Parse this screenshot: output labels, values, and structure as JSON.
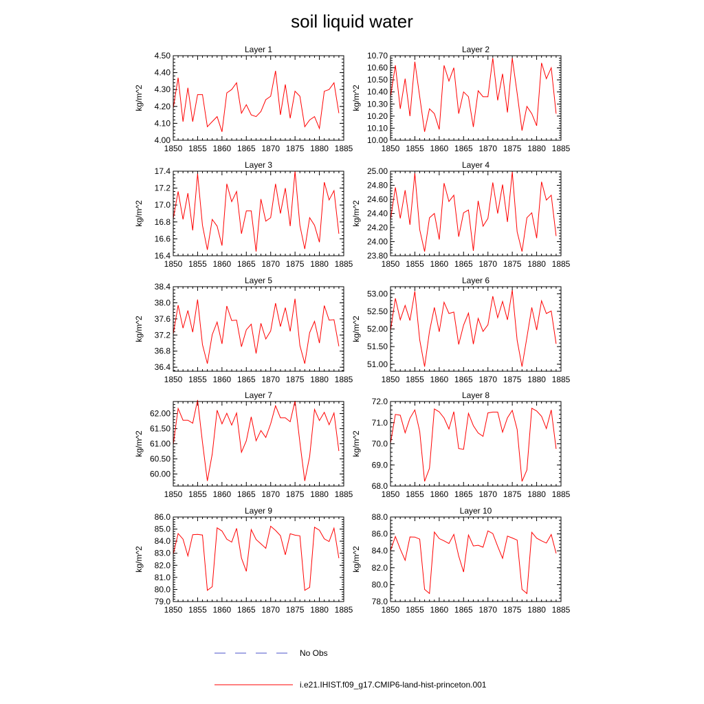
{
  "figure": {
    "title": "soil liquid water"
  },
  "legend": [
    {
      "label": "No Obs",
      "color": "#4a52c8",
      "dash": true
    },
    {
      "label": "i.e21.IHIST.f09_g17.CMIP6-land-hist-princeton.001",
      "color": "#ff0000",
      "dash": false
    }
  ],
  "chart_data": [
    {
      "type": "line",
      "title": "Layer 1",
      "ylabel": "kg/m^2",
      "xlim": [
        1850,
        1885
      ],
      "ylim": [
        4.0,
        4.5
      ],
      "xticks": [
        1850,
        1855,
        1860,
        1865,
        1870,
        1875,
        1880,
        1885
      ],
      "yticks": [
        "4.00",
        "4.10",
        "4.20",
        "4.30",
        "4.40",
        "4.50"
      ],
      "ytick_values": [
        4.0,
        4.1,
        4.2,
        4.3,
        4.4,
        4.5
      ],
      "x": [
        1850,
        1851,
        1852,
        1853,
        1854,
        1855,
        1856,
        1857,
        1858,
        1859,
        1860,
        1861,
        1862,
        1863,
        1864,
        1865,
        1866,
        1867,
        1868,
        1869,
        1870,
        1871,
        1872,
        1873,
        1874,
        1875,
        1876,
        1877,
        1878,
        1879,
        1880,
        1881,
        1882,
        1883,
        1884
      ],
      "series": [
        {
          "name": "i.e21.IHIST.f09_g17.CMIP6-land-hist-princeton.001",
          "color": "#ff0000",
          "values": [
            4.19,
            4.37,
            4.11,
            4.31,
            4.11,
            4.27,
            4.27,
            4.08,
            4.11,
            4.14,
            4.05,
            4.28,
            4.3,
            4.34,
            4.16,
            4.21,
            4.15,
            4.14,
            4.17,
            4.24,
            4.26,
            4.41,
            4.15,
            4.33,
            4.13,
            4.29,
            4.26,
            4.08,
            4.12,
            4.14,
            4.07,
            4.29,
            4.3,
            4.34,
            4.16
          ]
        }
      ]
    },
    {
      "type": "line",
      "title": "Layer 2",
      "ylabel": "kg/m^2",
      "xlim": [
        1850,
        1885
      ],
      "ylim": [
        10.0,
        10.7
      ],
      "xticks": [
        1850,
        1855,
        1860,
        1865,
        1870,
        1875,
        1880,
        1885
      ],
      "yticks": [
        "10.00",
        "10.10",
        "10.20",
        "10.30",
        "10.40",
        "10.50",
        "10.60",
        "10.70"
      ],
      "ytick_values": [
        10.0,
        10.1,
        10.2,
        10.3,
        10.4,
        10.5,
        10.6,
        10.7
      ],
      "x": [
        1850,
        1851,
        1852,
        1853,
        1854,
        1855,
        1856,
        1857,
        1858,
        1859,
        1860,
        1861,
        1862,
        1863,
        1864,
        1865,
        1866,
        1867,
        1868,
        1869,
        1870,
        1871,
        1872,
        1873,
        1874,
        1875,
        1876,
        1877,
        1878,
        1879,
        1880,
        1881,
        1882,
        1883,
        1884
      ],
      "series": [
        {
          "name": "i.e21.IHIST.f09_g17.CMIP6-land-hist-princeton.001",
          "color": "#ff0000",
          "values": [
            10.36,
            10.62,
            10.26,
            10.51,
            10.2,
            10.65,
            10.36,
            10.07,
            10.26,
            10.22,
            10.09,
            10.62,
            10.49,
            10.6,
            10.22,
            10.4,
            10.36,
            10.11,
            10.41,
            10.36,
            10.36,
            10.68,
            10.33,
            10.55,
            10.23,
            10.68,
            10.39,
            10.08,
            10.28,
            10.22,
            10.12,
            10.64,
            10.51,
            10.6,
            10.22
          ]
        }
      ]
    },
    {
      "type": "line",
      "title": "Layer 3",
      "ylabel": "kg/m^2",
      "xlim": [
        1850,
        1885
      ],
      "ylim": [
        16.4,
        17.4
      ],
      "xticks": [
        1850,
        1855,
        1860,
        1865,
        1870,
        1875,
        1880,
        1885
      ],
      "yticks": [
        "16.4",
        "16.6",
        "16.8",
        "17.0",
        "17.2",
        "17.4"
      ],
      "ytick_values": [
        16.4,
        16.6,
        16.8,
        17.0,
        17.2,
        17.4
      ],
      "x": [
        1850,
        1851,
        1852,
        1853,
        1854,
        1855,
        1856,
        1857,
        1858,
        1859,
        1860,
        1861,
        1862,
        1863,
        1864,
        1865,
        1866,
        1867,
        1868,
        1869,
        1870,
        1871,
        1872,
        1873,
        1874,
        1875,
        1876,
        1877,
        1878,
        1879,
        1880,
        1881,
        1882,
        1883,
        1884
      ],
      "series": [
        {
          "name": "i.e21.IHIST.f09_g17.CMIP6-land-hist-princeton.001",
          "color": "#ff0000",
          "values": [
            16.84,
            17.16,
            16.83,
            17.14,
            16.7,
            17.37,
            16.76,
            16.47,
            16.83,
            16.75,
            16.52,
            17.25,
            17.04,
            17.16,
            16.66,
            16.93,
            16.93,
            16.45,
            17.07,
            16.81,
            16.85,
            17.25,
            16.9,
            17.2,
            16.75,
            17.4,
            16.76,
            16.48,
            16.85,
            16.76,
            16.56,
            17.27,
            17.06,
            17.17,
            16.66
          ]
        }
      ]
    },
    {
      "type": "line",
      "title": "Layer 4",
      "ylabel": "kg/m^2",
      "xlim": [
        1850,
        1885
      ],
      "ylim": [
        23.8,
        25.0
      ],
      "xticks": [
        1850,
        1855,
        1860,
        1865,
        1870,
        1875,
        1880,
        1885
      ],
      "yticks": [
        "23.80",
        "24.00",
        "24.20",
        "24.40",
        "24.60",
        "24.80",
        "25.00"
      ],
      "ytick_values": [
        23.8,
        24.0,
        24.2,
        24.4,
        24.6,
        24.8,
        25.0
      ],
      "x": [
        1850,
        1851,
        1852,
        1853,
        1854,
        1855,
        1856,
        1857,
        1858,
        1859,
        1860,
        1861,
        1862,
        1863,
        1864,
        1865,
        1866,
        1867,
        1868,
        1869,
        1870,
        1871,
        1872,
        1873,
        1874,
        1875,
        1876,
        1877,
        1878,
        1879,
        1880,
        1881,
        1882,
        1883,
        1884
      ],
      "series": [
        {
          "name": "i.e21.IHIST.f09_g17.CMIP6-land-hist-princeton.001",
          "color": "#ff0000",
          "values": [
            24.31,
            24.77,
            24.33,
            24.73,
            24.24,
            24.97,
            24.17,
            23.86,
            24.34,
            24.4,
            24.03,
            24.83,
            24.57,
            24.66,
            24.07,
            24.41,
            24.45,
            23.87,
            24.58,
            24.22,
            24.33,
            24.84,
            24.4,
            24.81,
            24.28,
            24.99,
            24.14,
            23.86,
            24.34,
            24.41,
            24.05,
            24.85,
            24.59,
            24.66,
            24.08
          ]
        }
      ]
    },
    {
      "type": "line",
      "title": "Layer 5",
      "ylabel": "kg/m^2",
      "xlim": [
        1850,
        1885
      ],
      "ylim": [
        36.3,
        38.4
      ],
      "xticks": [
        1850,
        1855,
        1860,
        1865,
        1870,
        1875,
        1880,
        1885
      ],
      "yticks": [
        "36.4",
        "36.8",
        "37.2",
        "37.6",
        "38.0",
        "38.4"
      ],
      "ytick_values": [
        36.4,
        36.8,
        37.2,
        37.6,
        38.0,
        38.4
      ],
      "x": [
        1850,
        1851,
        1852,
        1853,
        1854,
        1855,
        1856,
        1857,
        1858,
        1859,
        1860,
        1861,
        1862,
        1863,
        1864,
        1865,
        1866,
        1867,
        1868,
        1869,
        1870,
        1871,
        1872,
        1873,
        1874,
        1875,
        1876,
        1877,
        1878,
        1879,
        1880,
        1881,
        1882,
        1883,
        1884
      ],
      "series": [
        {
          "name": "i.e21.IHIST.f09_g17.CMIP6-land-hist-princeton.001",
          "color": "#ff0000",
          "values": [
            37.22,
            37.94,
            37.37,
            37.81,
            37.27,
            38.08,
            36.96,
            36.49,
            37.21,
            37.52,
            36.98,
            37.92,
            37.56,
            37.57,
            36.91,
            37.33,
            37.47,
            36.74,
            37.49,
            37.1,
            37.3,
            37.99,
            37.41,
            37.88,
            37.29,
            38.1,
            36.94,
            36.49,
            37.26,
            37.54,
            37.0,
            37.93,
            37.57,
            37.58,
            36.92
          ]
        }
      ]
    },
    {
      "type": "line",
      "title": "Layer 6",
      "ylabel": "kg/m^2",
      "xlim": [
        1850,
        1885
      ],
      "ylim": [
        50.8,
        53.2
      ],
      "xticks": [
        1850,
        1855,
        1860,
        1865,
        1870,
        1875,
        1880,
        1885
      ],
      "yticks": [
        "51.00",
        "51.50",
        "52.00",
        "52.50",
        "53.00"
      ],
      "ytick_values": [
        51.0,
        51.5,
        52.0,
        52.5,
        53.0
      ],
      "x": [
        1850,
        1851,
        1852,
        1853,
        1854,
        1855,
        1856,
        1857,
        1858,
        1859,
        1860,
        1861,
        1862,
        1863,
        1864,
        1865,
        1866,
        1867,
        1868,
        1869,
        1870,
        1871,
        1872,
        1873,
        1874,
        1875,
        1876,
        1877,
        1878,
        1879,
        1880,
        1881,
        1882,
        1883,
        1884
      ],
      "series": [
        {
          "name": "i.e21.IHIST.f09_g17.CMIP6-land-hist-princeton.001",
          "color": "#ff0000",
          "values": [
            51.95,
            52.87,
            52.26,
            52.67,
            52.24,
            53.07,
            51.69,
            50.93,
            51.93,
            52.61,
            51.92,
            52.76,
            52.44,
            52.48,
            51.56,
            52.11,
            52.45,
            51.57,
            52.3,
            51.93,
            52.12,
            52.93,
            52.32,
            52.78,
            52.26,
            53.1,
            51.68,
            50.93,
            51.76,
            52.61,
            51.97,
            52.8,
            52.44,
            52.51,
            51.58
          ]
        }
      ]
    },
    {
      "type": "line",
      "title": "Layer 7",
      "ylabel": "kg/m^2",
      "xlim": [
        1850,
        1885
      ],
      "ylim": [
        59.6,
        62.4
      ],
      "xticks": [
        1850,
        1855,
        1860,
        1865,
        1870,
        1875,
        1880,
        1885
      ],
      "yticks": [
        "60.00",
        "60.50",
        "61.00",
        "61.50",
        "62.00"
      ],
      "ytick_values": [
        60.0,
        60.5,
        61.0,
        61.5,
        62.0
      ],
      "x": [
        1850,
        1851,
        1852,
        1853,
        1854,
        1855,
        1856,
        1857,
        1858,
        1859,
        1860,
        1861,
        1862,
        1863,
        1864,
        1865,
        1866,
        1867,
        1868,
        1869,
        1870,
        1871,
        1872,
        1873,
        1874,
        1875,
        1876,
        1877,
        1878,
        1879,
        1880,
        1881,
        1882,
        1883,
        1884
      ],
      "series": [
        {
          "name": "i.e21.IHIST.f09_g17.CMIP6-land-hist-princeton.001",
          "color": "#ff0000",
          "values": [
            60.97,
            62.17,
            61.78,
            61.78,
            61.68,
            62.45,
            61.05,
            59.77,
            60.66,
            62.11,
            61.66,
            62.01,
            61.62,
            62.02,
            60.72,
            61.1,
            61.89,
            61.1,
            61.44,
            61.21,
            61.66,
            62.26,
            61.86,
            61.86,
            61.73,
            62.42,
            61.05,
            59.77,
            60.58,
            62.14,
            61.77,
            62.04,
            61.63,
            62.02,
            60.76
          ]
        }
      ]
    },
    {
      "type": "line",
      "title": "Layer 8",
      "ylabel": "kg/m^2",
      "xlim": [
        1850,
        1885
      ],
      "ylim": [
        68.0,
        72.0
      ],
      "xticks": [
        1850,
        1855,
        1860,
        1865,
        1870,
        1875,
        1880,
        1885
      ],
      "yticks": [
        "68.0",
        "69.0",
        "70.0",
        "71.0",
        "72.0"
      ],
      "ytick_values": [
        68.0,
        69.0,
        70.0,
        71.0,
        72.0
      ],
      "x": [
        1850,
        1851,
        1852,
        1853,
        1854,
        1855,
        1856,
        1857,
        1858,
        1859,
        1860,
        1861,
        1862,
        1863,
        1864,
        1865,
        1866,
        1867,
        1868,
        1869,
        1870,
        1871,
        1872,
        1873,
        1874,
        1875,
        1876,
        1877,
        1878,
        1879,
        1880,
        1881,
        1882,
        1883,
        1884
      ],
      "series": [
        {
          "name": "i.e21.IHIST.f09_g17.CMIP6-land-hist-princeton.001",
          "color": "#ff0000",
          "values": [
            70.02,
            71.39,
            71.35,
            70.52,
            71.21,
            71.6,
            70.59,
            68.22,
            68.84,
            71.65,
            71.51,
            71.22,
            70.7,
            71.52,
            69.77,
            69.74,
            71.44,
            70.86,
            70.51,
            70.35,
            71.46,
            71.5,
            71.5,
            70.55,
            71.23,
            71.58,
            70.68,
            68.22,
            68.76,
            71.68,
            71.55,
            71.3,
            70.72,
            71.6,
            69.76
          ]
        }
      ]
    },
    {
      "type": "line",
      "title": "Layer 9",
      "ylabel": "kg/m^2",
      "xlim": [
        1850,
        1885
      ],
      "ylim": [
        79.0,
        86.0
      ],
      "xticks": [
        1850,
        1855,
        1860,
        1865,
        1870,
        1875,
        1880,
        1885
      ],
      "yticks": [
        "79.0",
        "80.0",
        "81.0",
        "82.0",
        "83.0",
        "84.0",
        "85.0",
        "86.0"
      ],
      "ytick_values": [
        79.0,
        80.0,
        81.0,
        82.0,
        83.0,
        84.0,
        85.0,
        86.0
      ],
      "x": [
        1850,
        1851,
        1852,
        1853,
        1854,
        1855,
        1856,
        1857,
        1858,
        1859,
        1860,
        1861,
        1862,
        1863,
        1864,
        1865,
        1866,
        1867,
        1868,
        1869,
        1870,
        1871,
        1872,
        1873,
        1874,
        1875,
        1876,
        1877,
        1878,
        1879,
        1880,
        1881,
        1882,
        1883,
        1884
      ],
      "series": [
        {
          "name": "i.e21.IHIST.f09_g17.CMIP6-land-hist-princeton.001",
          "color": "#ff0000",
          "values": [
            82.92,
            84.63,
            84.17,
            82.78,
            84.54,
            84.56,
            84.51,
            79.93,
            80.23,
            85.1,
            84.84,
            84.16,
            83.92,
            85.06,
            82.6,
            81.5,
            84.96,
            84.14,
            83.78,
            83.41,
            85.24,
            84.89,
            84.46,
            82.87,
            84.61,
            84.5,
            84.44,
            79.93,
            80.18,
            85.15,
            84.91,
            84.19,
            83.97,
            85.08,
            82.59
          ]
        }
      ]
    },
    {
      "type": "line",
      "title": "Layer 10",
      "ylabel": "kg/m^2",
      "xlim": [
        1850,
        1885
      ],
      "ylim": [
        78.0,
        88.0
      ],
      "xticks": [
        1850,
        1855,
        1860,
        1865,
        1870,
        1875,
        1880,
        1885
      ],
      "yticks": [
        "78.0",
        "80.0",
        "82.0",
        "84.0",
        "86.0",
        "88.0"
      ],
      "ytick_values": [
        78.0,
        80.0,
        82.0,
        84.0,
        86.0,
        88.0
      ],
      "x": [
        1850,
        1851,
        1852,
        1853,
        1854,
        1855,
        1856,
        1857,
        1858,
        1859,
        1860,
        1861,
        1862,
        1863,
        1864,
        1865,
        1866,
        1867,
        1868,
        1869,
        1870,
        1871,
        1872,
        1873,
        1874,
        1875,
        1876,
        1877,
        1878,
        1879,
        1880,
        1881,
        1882,
        1883,
        1884
      ],
      "series": [
        {
          "name": "i.e21.IHIST.f09_g17.CMIP6-land-hist-princeton.001",
          "color": "#ff0000",
          "values": [
            84.03,
            85.7,
            84.2,
            82.88,
            85.64,
            85.63,
            85.38,
            79.44,
            78.95,
            86.22,
            85.45,
            85.18,
            84.86,
            85.94,
            83.38,
            81.5,
            85.87,
            84.58,
            84.66,
            84.43,
            86.36,
            86.04,
            84.53,
            83.11,
            85.74,
            85.52,
            85.27,
            79.45,
            78.95,
            86.19,
            85.5,
            85.18,
            84.92,
            85.93,
            83.7
          ]
        }
      ]
    }
  ]
}
